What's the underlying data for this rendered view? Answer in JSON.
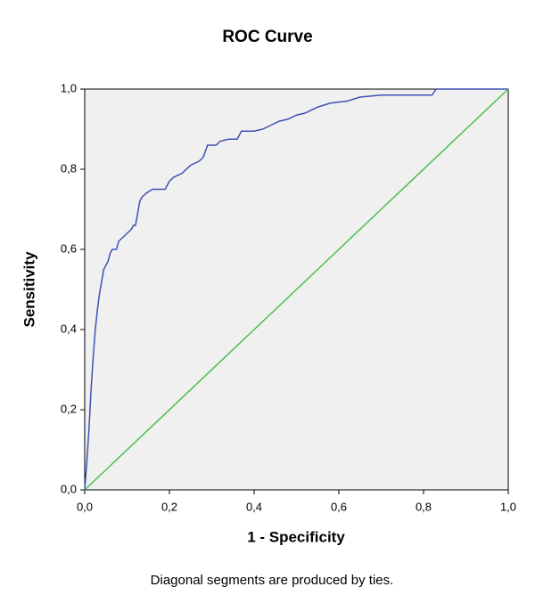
{
  "chart_data": {
    "type": "line",
    "title": "ROC Curve",
    "xlabel": "1 - Specificity",
    "ylabel": "Sensitivity",
    "footnote": "Diagonal segments are produced by ties.",
    "xlim": [
      0,
      1
    ],
    "ylim": [
      0,
      1
    ],
    "xticks": [
      {
        "value": 0,
        "label": "0,0"
      },
      {
        "value": 0.2,
        "label": "0,2"
      },
      {
        "value": 0.4,
        "label": "0,4"
      },
      {
        "value": 0.6,
        "label": "0,6"
      },
      {
        "value": 0.8,
        "label": "0,8"
      },
      {
        "value": 1,
        "label": "1,0"
      }
    ],
    "yticks": [
      {
        "value": 0,
        "label": "0,0"
      },
      {
        "value": 0.2,
        "label": "0,2"
      },
      {
        "value": 0.4,
        "label": "0,4"
      },
      {
        "value": 0.6,
        "label": "0,6"
      },
      {
        "value": 0.8,
        "label": "0,8"
      },
      {
        "value": 1,
        "label": "1,0"
      }
    ],
    "grid": false,
    "series": [
      {
        "color": "#3f51b5",
        "x": [
          0,
          0.005,
          0.01,
          0.015,
          0.02,
          0.025,
          0.03,
          0.035,
          0.04,
          0.045,
          0.055,
          0.06,
          0.065,
          0.075,
          0.08,
          0.09,
          0.1,
          0.11,
          0.115,
          0.12,
          0.125,
          0.13,
          0.135,
          0.145,
          0.16,
          0.19,
          0.2,
          0.21,
          0.23,
          0.25,
          0.27,
          0.28,
          0.29,
          0.31,
          0.32,
          0.34,
          0.36,
          0.37,
          0.4,
          0.42,
          0.44,
          0.46,
          0.48,
          0.5,
          0.52,
          0.55,
          0.58,
          0.62,
          0.65,
          0.7,
          0.82,
          0.83,
          1
        ],
        "values": [
          0,
          0.07,
          0.15,
          0.25,
          0.33,
          0.4,
          0.45,
          0.49,
          0.52,
          0.55,
          0.57,
          0.59,
          0.6,
          0.6,
          0.62,
          0.63,
          0.64,
          0.65,
          0.66,
          0.66,
          0.69,
          0.72,
          0.73,
          0.74,
          0.75,
          0.75,
          0.77,
          0.78,
          0.79,
          0.81,
          0.82,
          0.83,
          0.86,
          0.86,
          0.87,
          0.875,
          0.875,
          0.895,
          0.895,
          0.9,
          0.91,
          0.92,
          0.925,
          0.935,
          0.94,
          0.955,
          0.965,
          0.97,
          0.98,
          0.985,
          0.985,
          1,
          1
        ]
      },
      {
        "color": "#4cc04c",
        "x": [
          0,
          1
        ],
        "values": [
          0,
          1
        ]
      }
    ]
  }
}
